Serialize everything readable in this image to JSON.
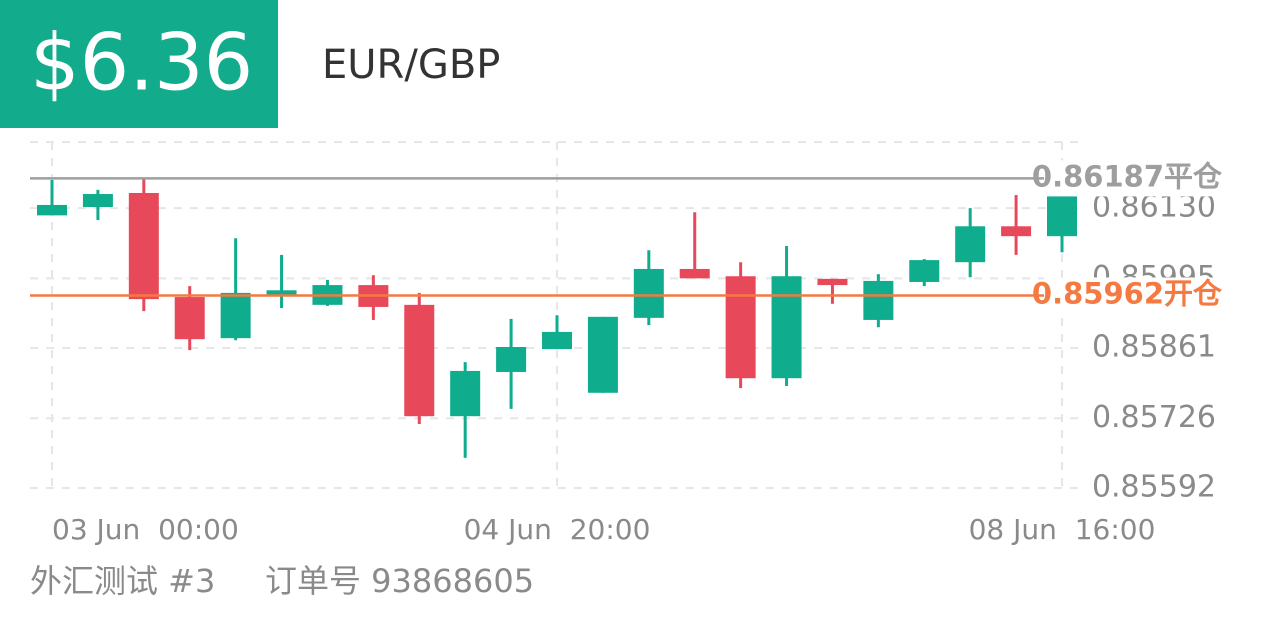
{
  "header": {
    "price": "$6.36",
    "symbol": "EUR/GBP"
  },
  "chart_data": {
    "type": "candlestick",
    "categories": [
      "03 Jun  00:00",
      null,
      null,
      null,
      null,
      null,
      null,
      null,
      null,
      null,
      null,
      "04 Jun  20:00",
      null,
      null,
      null,
      null,
      null,
      null,
      null,
      null,
      null,
      null,
      "08 Jun  16:00"
    ],
    "open": [
      0.86116,
      0.86132,
      0.86159,
      0.85959,
      0.8588,
      0.85963,
      0.85944,
      0.85982,
      0.85944,
      0.8573,
      0.85815,
      0.85859,
      0.85775,
      0.85919,
      0.86013,
      0.85999,
      0.85803,
      0.85994,
      0.85915,
      0.85988,
      0.86026,
      0.86095,
      0.86076
    ],
    "high": [
      0.86184,
      0.86165,
      0.86187,
      0.8598,
      0.86072,
      0.8604,
      0.85992,
      0.86001,
      0.85967,
      0.85834,
      0.85917,
      0.85924,
      0.85921,
      0.86049,
      0.86122,
      0.86026,
      0.86057,
      0.85994,
      0.86003,
      0.86032,
      0.8613,
      0.86155,
      0.86155
    ],
    "low": [
      0.86116,
      0.86107,
      0.85932,
      0.85857,
      0.85876,
      0.85938,
      0.85942,
      0.85915,
      0.85715,
      0.8565,
      0.85744,
      0.85859,
      0.85775,
      0.85905,
      0.85995,
      0.85784,
      0.85788,
      0.85946,
      0.85901,
      0.8598,
      0.85997,
      0.8604,
      0.86045
    ],
    "close": [
      0.86136,
      0.86157,
      0.85955,
      0.85878,
      0.85967,
      0.85972,
      0.85982,
      0.8594,
      0.8573,
      0.85817,
      0.85863,
      0.85892,
      0.85921,
      0.86013,
      0.85995,
      0.85803,
      0.85999,
      0.85982,
      0.8599,
      0.8603,
      0.86095,
      0.86076,
      0.86155
    ],
    "up_color": "#0fad8d",
    "down_color": "#e8495a",
    "ylim": [
      0.85592,
      0.86257
    ],
    "yticks": [
      {
        "value": 0.8613,
        "label": "0.86130"
      },
      0.85995,
      0.85861,
      0.85726,
      0.85592
    ],
    "grid": true,
    "reference_lines": [
      {
        "value": 0.86187,
        "label": "0.86187平仓",
        "color": "#9e9e9e"
      },
      {
        "value": 0.85962,
        "label": "0.85962开仓",
        "color": "#f47a42"
      }
    ]
  },
  "footer": {
    "account": "外汇测试 #3",
    "order": "订单号 93868605"
  }
}
